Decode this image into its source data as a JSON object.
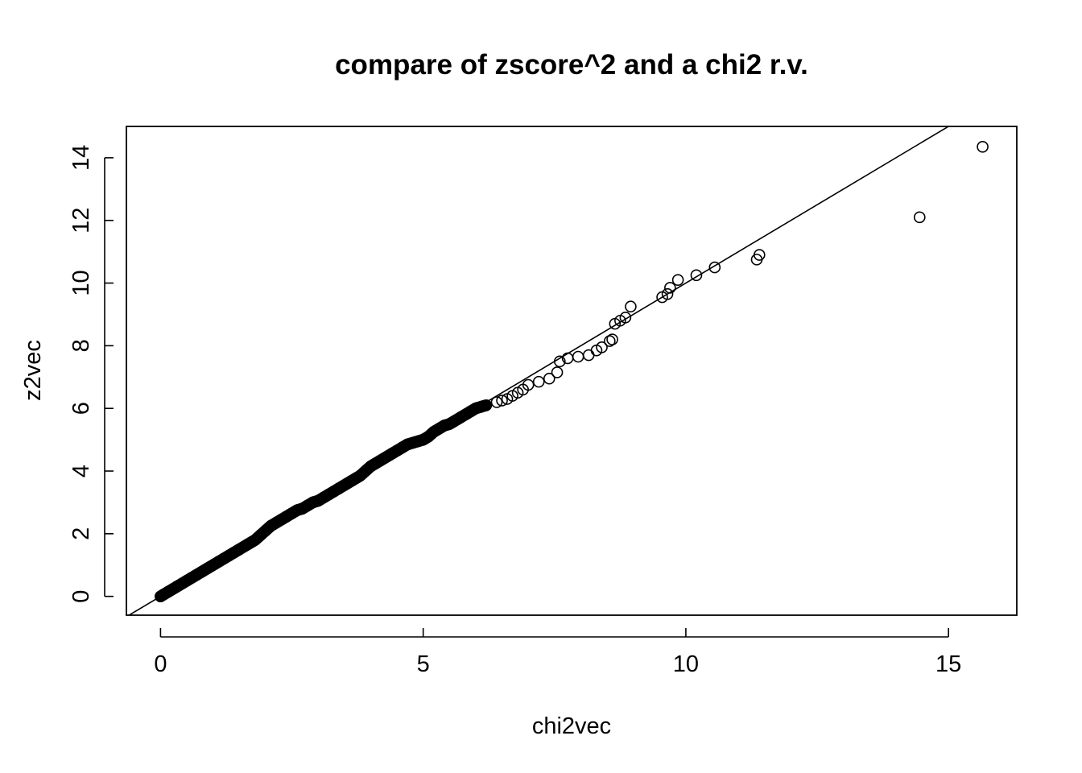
{
  "chart_data": {
    "type": "scatter",
    "title": "compare of zscore^2 and a chi2 r.v.",
    "xlabel": "chi2vec",
    "ylabel": "z2vec",
    "xlim": [
      -0.65,
      16.3
    ],
    "ylim": [
      -0.6,
      15
    ],
    "x_ticks": [
      0,
      5,
      10,
      15
    ],
    "y_ticks": [
      0,
      2,
      4,
      6,
      8,
      10,
      12,
      14
    ],
    "grid": false,
    "legend": "none",
    "reference_line": {
      "intercept": 0,
      "slope": 1
    },
    "marker": "open-circle",
    "colors": {
      "points": "#000000",
      "line": "#000000",
      "background": "#ffffff"
    },
    "points": {
      "x": [
        0.0,
        0.05,
        0.1,
        0.15,
        0.2,
        0.3,
        0.4,
        0.5,
        0.6,
        0.7,
        0.8,
        0.9,
        1.0,
        1.1,
        1.2,
        1.3,
        1.4,
        1.5,
        1.6,
        1.7,
        1.8,
        1.9,
        2.0,
        2.1,
        2.2,
        2.3,
        2.4,
        2.5,
        2.6,
        2.7,
        2.8,
        2.9,
        3.0,
        3.1,
        3.2,
        3.3,
        3.4,
        3.5,
        3.6,
        3.7,
        3.8,
        3.9,
        4.0,
        4.1,
        4.2,
        4.3,
        4.4,
        4.5,
        4.6,
        4.7,
        4.8,
        4.9,
        5.0,
        5.1,
        5.2,
        5.3,
        5.4,
        5.5,
        5.6,
        5.7,
        5.8,
        5.9,
        6.0,
        6.2,
        6.4,
        6.5,
        6.6,
        6.7,
        6.8,
        6.9,
        7.0,
        7.2,
        7.4,
        7.55,
        7.6,
        7.75,
        7.95,
        8.15,
        8.3,
        8.4,
        8.55,
        8.6,
        8.65,
        8.75,
        8.85,
        8.95,
        9.55,
        9.65,
        9.7,
        9.85,
        10.2,
        10.55,
        11.35,
        11.4,
        14.45,
        15.65
      ],
      "y": [
        0.0,
        0.05,
        0.1,
        0.15,
        0.2,
        0.3,
        0.4,
        0.5,
        0.6,
        0.7,
        0.8,
        0.9,
        1.0,
        1.1,
        1.2,
        1.3,
        1.4,
        1.5,
        1.6,
        1.7,
        1.8,
        1.95,
        2.1,
        2.25,
        2.35,
        2.45,
        2.55,
        2.65,
        2.75,
        2.8,
        2.9,
        3.0,
        3.05,
        3.15,
        3.25,
        3.35,
        3.45,
        3.55,
        3.65,
        3.75,
        3.85,
        4.0,
        4.15,
        4.25,
        4.35,
        4.45,
        4.55,
        4.65,
        4.75,
        4.85,
        4.9,
        4.95,
        5.0,
        5.1,
        5.25,
        5.35,
        5.45,
        5.5,
        5.6,
        5.7,
        5.8,
        5.9,
        6.0,
        6.1,
        6.2,
        6.25,
        6.3,
        6.4,
        6.5,
        6.6,
        6.75,
        6.85,
        6.95,
        7.15,
        7.5,
        7.6,
        7.65,
        7.7,
        7.85,
        7.95,
        8.15,
        8.2,
        8.7,
        8.8,
        8.9,
        9.25,
        9.55,
        9.65,
        9.85,
        10.1,
        10.25,
        10.5,
        10.75,
        10.9,
        12.1,
        14.35
      ]
    }
  }
}
